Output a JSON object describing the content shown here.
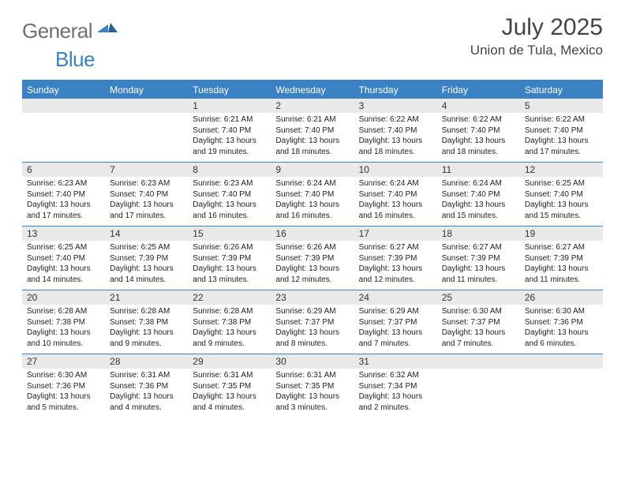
{
  "brand": {
    "part1": "General",
    "part2": "Blue"
  },
  "title": "July 2025",
  "location": "Union de Tula, Mexico",
  "colors": {
    "accent": "#3b82c4",
    "band": "#e9e9e9",
    "text": "#222222",
    "title": "#444444",
    "logo_gray": "#6f6f6f",
    "background": "#ffffff"
  },
  "weekdays": [
    "Sunday",
    "Monday",
    "Tuesday",
    "Wednesday",
    "Thursday",
    "Friday",
    "Saturday"
  ],
  "weeks": [
    [
      null,
      null,
      {
        "n": "1",
        "sr": "Sunrise: 6:21 AM",
        "ss": "Sunset: 7:40 PM",
        "d1": "Daylight: 13 hours",
        "d2": "and 19 minutes."
      },
      {
        "n": "2",
        "sr": "Sunrise: 6:21 AM",
        "ss": "Sunset: 7:40 PM",
        "d1": "Daylight: 13 hours",
        "d2": "and 18 minutes."
      },
      {
        "n": "3",
        "sr": "Sunrise: 6:22 AM",
        "ss": "Sunset: 7:40 PM",
        "d1": "Daylight: 13 hours",
        "d2": "and 18 minutes."
      },
      {
        "n": "4",
        "sr": "Sunrise: 6:22 AM",
        "ss": "Sunset: 7:40 PM",
        "d1": "Daylight: 13 hours",
        "d2": "and 18 minutes."
      },
      {
        "n": "5",
        "sr": "Sunrise: 6:22 AM",
        "ss": "Sunset: 7:40 PM",
        "d1": "Daylight: 13 hours",
        "d2": "and 17 minutes."
      }
    ],
    [
      {
        "n": "6",
        "sr": "Sunrise: 6:23 AM",
        "ss": "Sunset: 7:40 PM",
        "d1": "Daylight: 13 hours",
        "d2": "and 17 minutes."
      },
      {
        "n": "7",
        "sr": "Sunrise: 6:23 AM",
        "ss": "Sunset: 7:40 PM",
        "d1": "Daylight: 13 hours",
        "d2": "and 17 minutes."
      },
      {
        "n": "8",
        "sr": "Sunrise: 6:23 AM",
        "ss": "Sunset: 7:40 PM",
        "d1": "Daylight: 13 hours",
        "d2": "and 16 minutes."
      },
      {
        "n": "9",
        "sr": "Sunrise: 6:24 AM",
        "ss": "Sunset: 7:40 PM",
        "d1": "Daylight: 13 hours",
        "d2": "and 16 minutes."
      },
      {
        "n": "10",
        "sr": "Sunrise: 6:24 AM",
        "ss": "Sunset: 7:40 PM",
        "d1": "Daylight: 13 hours",
        "d2": "and 16 minutes."
      },
      {
        "n": "11",
        "sr": "Sunrise: 6:24 AM",
        "ss": "Sunset: 7:40 PM",
        "d1": "Daylight: 13 hours",
        "d2": "and 15 minutes."
      },
      {
        "n": "12",
        "sr": "Sunrise: 6:25 AM",
        "ss": "Sunset: 7:40 PM",
        "d1": "Daylight: 13 hours",
        "d2": "and 15 minutes."
      }
    ],
    [
      {
        "n": "13",
        "sr": "Sunrise: 6:25 AM",
        "ss": "Sunset: 7:40 PM",
        "d1": "Daylight: 13 hours",
        "d2": "and 14 minutes."
      },
      {
        "n": "14",
        "sr": "Sunrise: 6:25 AM",
        "ss": "Sunset: 7:39 PM",
        "d1": "Daylight: 13 hours",
        "d2": "and 14 minutes."
      },
      {
        "n": "15",
        "sr": "Sunrise: 6:26 AM",
        "ss": "Sunset: 7:39 PM",
        "d1": "Daylight: 13 hours",
        "d2": "and 13 minutes."
      },
      {
        "n": "16",
        "sr": "Sunrise: 6:26 AM",
        "ss": "Sunset: 7:39 PM",
        "d1": "Daylight: 13 hours",
        "d2": "and 12 minutes."
      },
      {
        "n": "17",
        "sr": "Sunrise: 6:27 AM",
        "ss": "Sunset: 7:39 PM",
        "d1": "Daylight: 13 hours",
        "d2": "and 12 minutes."
      },
      {
        "n": "18",
        "sr": "Sunrise: 6:27 AM",
        "ss": "Sunset: 7:39 PM",
        "d1": "Daylight: 13 hours",
        "d2": "and 11 minutes."
      },
      {
        "n": "19",
        "sr": "Sunrise: 6:27 AM",
        "ss": "Sunset: 7:39 PM",
        "d1": "Daylight: 13 hours",
        "d2": "and 11 minutes."
      }
    ],
    [
      {
        "n": "20",
        "sr": "Sunrise: 6:28 AM",
        "ss": "Sunset: 7:38 PM",
        "d1": "Daylight: 13 hours",
        "d2": "and 10 minutes."
      },
      {
        "n": "21",
        "sr": "Sunrise: 6:28 AM",
        "ss": "Sunset: 7:38 PM",
        "d1": "Daylight: 13 hours",
        "d2": "and 9 minutes."
      },
      {
        "n": "22",
        "sr": "Sunrise: 6:28 AM",
        "ss": "Sunset: 7:38 PM",
        "d1": "Daylight: 13 hours",
        "d2": "and 9 minutes."
      },
      {
        "n": "23",
        "sr": "Sunrise: 6:29 AM",
        "ss": "Sunset: 7:37 PM",
        "d1": "Daylight: 13 hours",
        "d2": "and 8 minutes."
      },
      {
        "n": "24",
        "sr": "Sunrise: 6:29 AM",
        "ss": "Sunset: 7:37 PM",
        "d1": "Daylight: 13 hours",
        "d2": "and 7 minutes."
      },
      {
        "n": "25",
        "sr": "Sunrise: 6:30 AM",
        "ss": "Sunset: 7:37 PM",
        "d1": "Daylight: 13 hours",
        "d2": "and 7 minutes."
      },
      {
        "n": "26",
        "sr": "Sunrise: 6:30 AM",
        "ss": "Sunset: 7:36 PM",
        "d1": "Daylight: 13 hours",
        "d2": "and 6 minutes."
      }
    ],
    [
      {
        "n": "27",
        "sr": "Sunrise: 6:30 AM",
        "ss": "Sunset: 7:36 PM",
        "d1": "Daylight: 13 hours",
        "d2": "and 5 minutes."
      },
      {
        "n": "28",
        "sr": "Sunrise: 6:31 AM",
        "ss": "Sunset: 7:36 PM",
        "d1": "Daylight: 13 hours",
        "d2": "and 4 minutes."
      },
      {
        "n": "29",
        "sr": "Sunrise: 6:31 AM",
        "ss": "Sunset: 7:35 PM",
        "d1": "Daylight: 13 hours",
        "d2": "and 4 minutes."
      },
      {
        "n": "30",
        "sr": "Sunrise: 6:31 AM",
        "ss": "Sunset: 7:35 PM",
        "d1": "Daylight: 13 hours",
        "d2": "and 3 minutes."
      },
      {
        "n": "31",
        "sr": "Sunrise: 6:32 AM",
        "ss": "Sunset: 7:34 PM",
        "d1": "Daylight: 13 hours",
        "d2": "and 2 minutes."
      },
      null,
      null
    ]
  ]
}
